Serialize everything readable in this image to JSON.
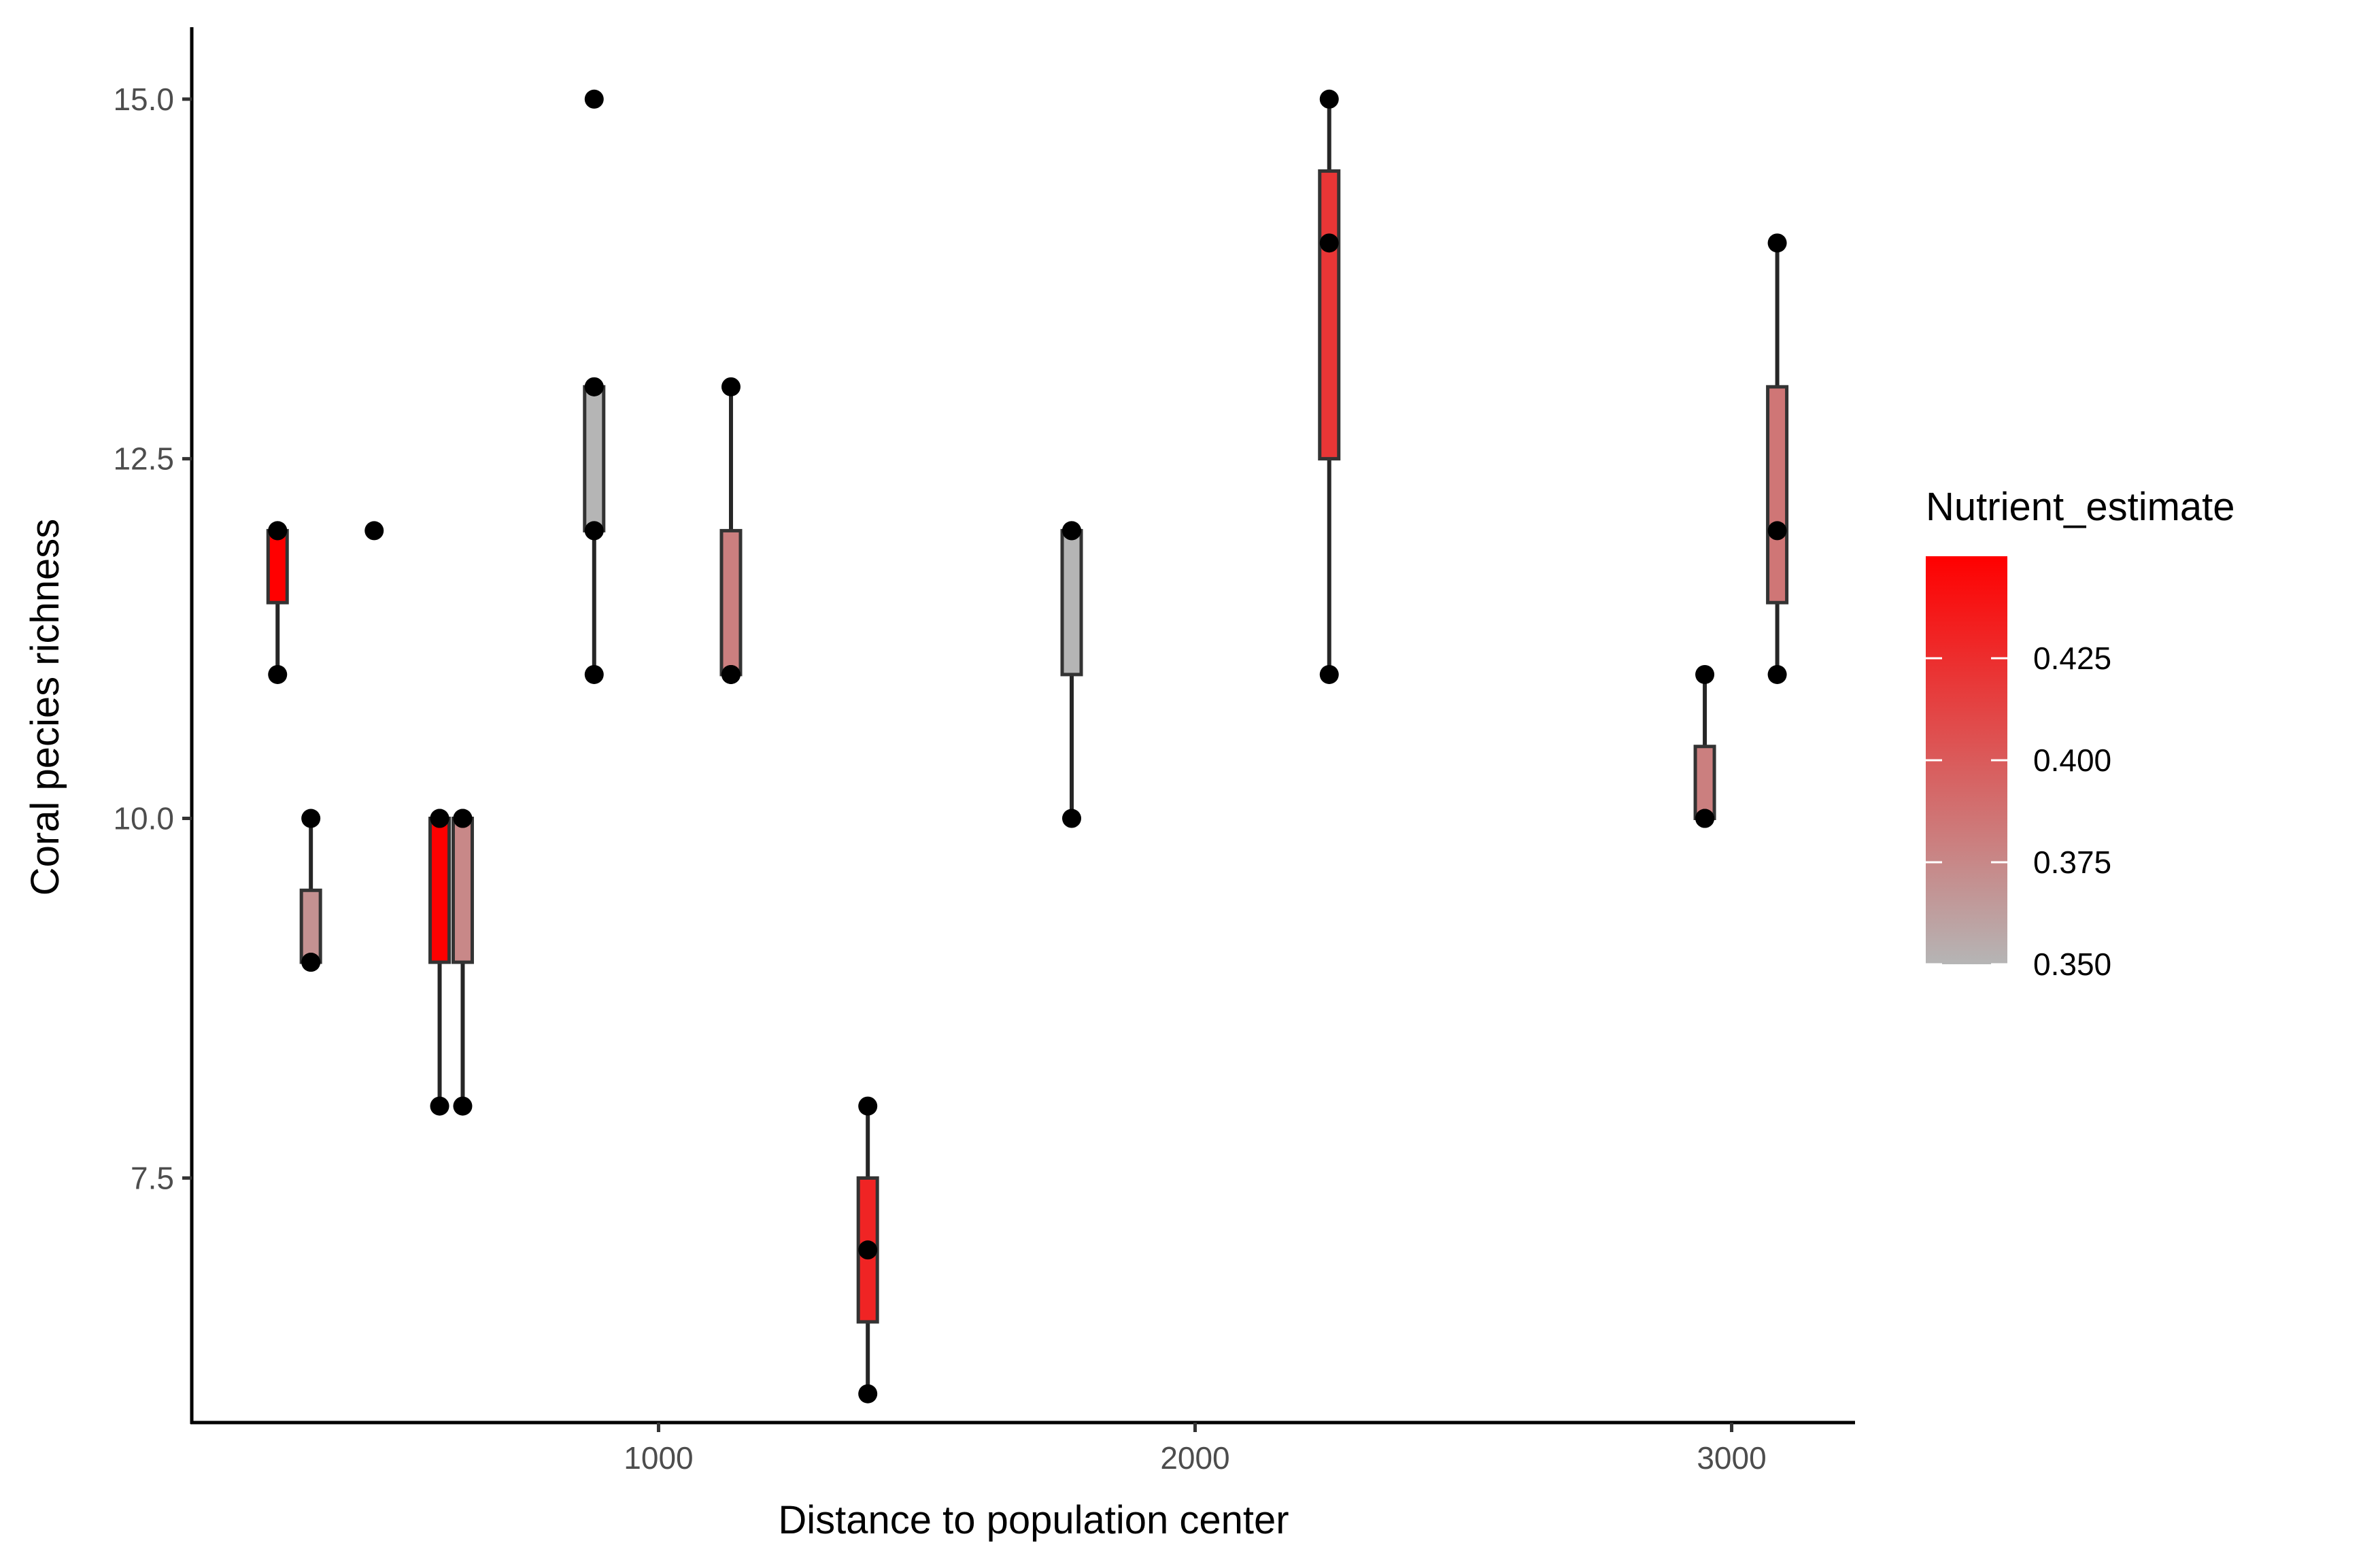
{
  "chart_data": {
    "type": "boxplot",
    "title": "",
    "xlabel": "Distance to population center",
    "ylabel": "Coral pecies richness",
    "xlim": [
      130,
      3230
    ],
    "ylim": [
      5.8,
      15.5
    ],
    "x_ticks": [
      1000,
      2000,
      3000
    ],
    "y_ticks": [
      7.5,
      10.0,
      12.5,
      15.0
    ],
    "x_tick_labels": [
      "1000",
      "2000",
      "3000"
    ],
    "y_tick_labels": [
      "7.5",
      "10.0",
      "12.5",
      "15.0"
    ],
    "grid": false,
    "legend": {
      "title": "Nutrient_estimate",
      "placement": "right",
      "type": "colorbar",
      "range": [
        0.35,
        0.45
      ],
      "ticks": [
        0.35,
        0.375,
        0.4,
        0.425
      ],
      "tick_labels": [
        "0.350",
        "0.375",
        "0.400",
        "0.425"
      ],
      "color_low": "#b5b5b5",
      "color_high": "#ff0000"
    },
    "groups": [
      {
        "x": 290,
        "nutrient": 0.45,
        "min": 11,
        "q1": 11.5,
        "median": 12,
        "q3": 12,
        "max": 12,
        "points": [
          11,
          12,
          12
        ]
      },
      {
        "x": 352,
        "nutrient": 0.37,
        "min": 9,
        "q1": 9,
        "median": 9,
        "q3": 9.5,
        "max": 10,
        "points": [
          9,
          9,
          10
        ]
      },
      {
        "x": 470,
        "nutrient": null,
        "min": null,
        "q1": null,
        "median": null,
        "q3": null,
        "max": null,
        "points": [
          12
        ]
      },
      {
        "x": 592,
        "nutrient": 0.45,
        "min": 8,
        "q1": 9,
        "median": 10,
        "q3": 10,
        "max": 10,
        "points": [
          8,
          10,
          10
        ]
      },
      {
        "x": 635,
        "nutrient": 0.375,
        "min": 8,
        "q1": 9,
        "median": 10,
        "q3": 10,
        "max": 10,
        "points": [
          8,
          10,
          10
        ]
      },
      {
        "x": 880,
        "nutrient": 0.35,
        "min": 11,
        "q1": 12,
        "median": 12,
        "q3": 13,
        "max": 13,
        "points": [
          11,
          12,
          12,
          13,
          13,
          15
        ]
      },
      {
        "x": 1135,
        "nutrient": 0.38,
        "min": 11,
        "q1": 11,
        "median": 11,
        "q3": 12,
        "max": 13,
        "points": [
          11,
          11,
          13
        ]
      },
      {
        "x": 1390,
        "nutrient": 0.43,
        "min": 6,
        "q1": 6.5,
        "median": 7,
        "q3": 7.5,
        "max": 8,
        "points": [
          6,
          7,
          8
        ]
      },
      {
        "x": 1770,
        "nutrient": 0.35,
        "min": 10,
        "q1": 11,
        "median": 12,
        "q3": 12,
        "max": 12,
        "points": [
          10,
          12,
          12
        ]
      },
      {
        "x": 2250,
        "nutrient": 0.42,
        "min": 11,
        "q1": 12.5,
        "median": 14,
        "q3": 14.5,
        "max": 15,
        "points": [
          11,
          14,
          15
        ]
      },
      {
        "x": 2950,
        "nutrient": 0.38,
        "min": 10,
        "q1": 10,
        "median": 10,
        "q3": 10.5,
        "max": 11,
        "points": [
          10,
          10,
          11
        ]
      },
      {
        "x": 3085,
        "nutrient": 0.385,
        "min": 11,
        "q1": 11.5,
        "median": 12,
        "q3": 13,
        "max": 14,
        "points": [
          11,
          12,
          14
        ]
      }
    ]
  }
}
